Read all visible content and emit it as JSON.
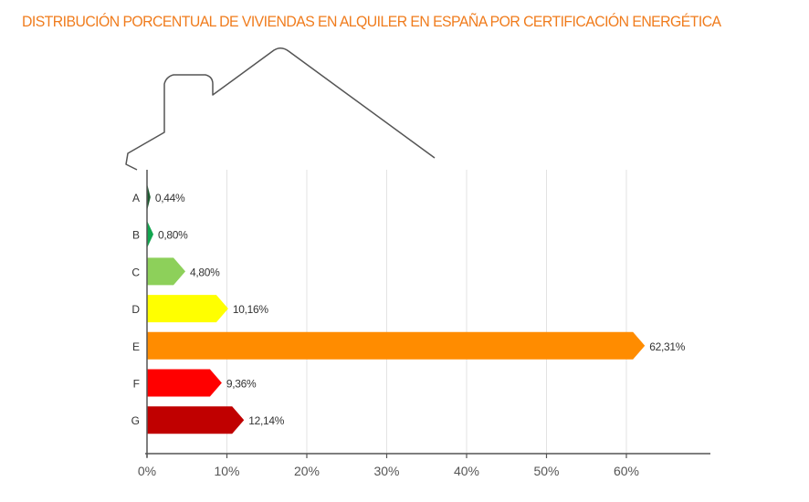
{
  "chart_data": {
    "type": "bar",
    "orientation": "horizontal",
    "title": "DISTRIBUCIÓN PORCENTUAL DE VIVIENDAS EN ALQUILER EN ESPAÑA POR CERTIFICACIÓN ENERGÉTICA",
    "categories": [
      "A",
      "B",
      "C",
      "D",
      "E",
      "F",
      "G"
    ],
    "values": [
      0.44,
      0.8,
      4.8,
      10.16,
      62.31,
      9.36,
      12.14
    ],
    "value_labels": [
      "0,44%",
      "0,80%",
      "4,80%",
      "10,16%",
      "62,31%",
      "9,36%",
      "12,14%"
    ],
    "colors": [
      "#1d5a2f",
      "#12a64f",
      "#8dd05a",
      "#ffff00",
      "#ff8c00",
      "#ff0000",
      "#c00000"
    ],
    "x_ticks": [
      0,
      10,
      20,
      30,
      40,
      50,
      60
    ],
    "x_tick_labels": [
      "0%",
      "10%",
      "20%",
      "30%",
      "40%",
      "50%",
      "60%"
    ],
    "xlim": [
      0,
      70
    ],
    "xlabel": "",
    "ylabel": "",
    "grid": "vertical",
    "legend": "none",
    "title_color": "#f07c1d"
  }
}
